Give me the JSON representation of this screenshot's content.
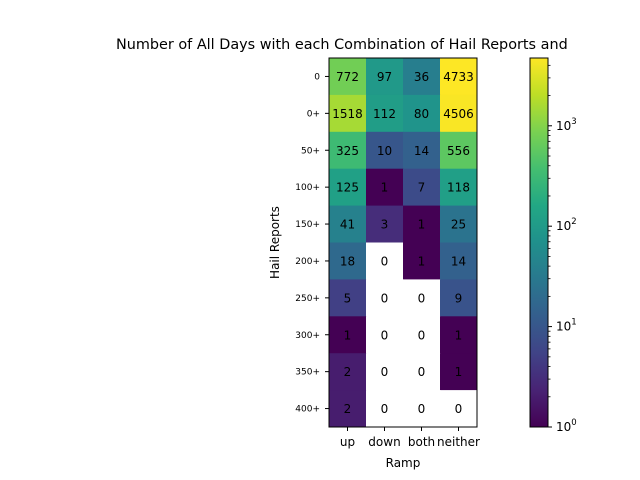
{
  "chart_data": {
    "type": "heatmap",
    "title": "Number of All Days with each Combination of Hail Reports and",
    "xlabel": "Ramp",
    "ylabel": "Hail Reports",
    "x_categories": [
      "up",
      "down",
      "both",
      "neither"
    ],
    "y_categories": [
      "0",
      "0+",
      "50+",
      "100+",
      "150+",
      "200+",
      "250+",
      "300+",
      "350+",
      "400+"
    ],
    "values": [
      [
        772,
        97,
        36,
        4733
      ],
      [
        1518,
        112,
        80,
        4506
      ],
      [
        325,
        10,
        14,
        556
      ],
      [
        125,
        1,
        7,
        118
      ],
      [
        41,
        3,
        1,
        25
      ],
      [
        18,
        0,
        1,
        14
      ],
      [
        5,
        0,
        0,
        9
      ],
      [
        1,
        0,
        0,
        1
      ],
      [
        2,
        0,
        0,
        1
      ],
      [
        2,
        0,
        0,
        0
      ]
    ],
    "color_scale": "log",
    "colormap": "viridis",
    "zero_color": "#ffffff",
    "colorbar": {
      "range": [
        1,
        4733
      ],
      "ticks": [
        {
          "value": 1,
          "base": "10",
          "exp": "0"
        },
        {
          "value": 10,
          "base": "10",
          "exp": "1"
        },
        {
          "value": 100,
          "base": "10",
          "exp": "2"
        },
        {
          "value": 1000,
          "base": "10",
          "exp": "3"
        }
      ]
    }
  }
}
